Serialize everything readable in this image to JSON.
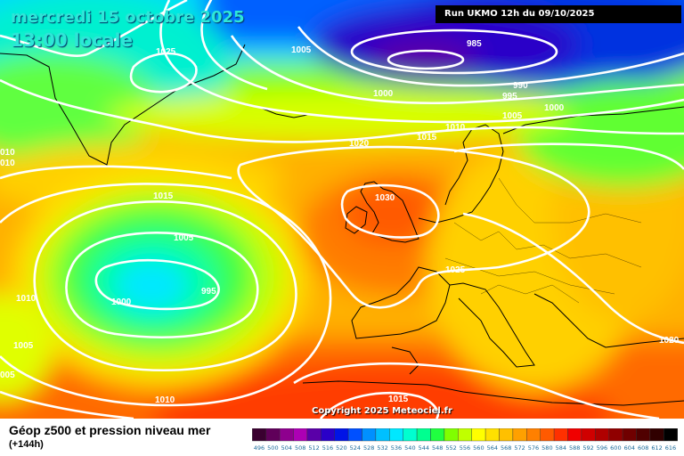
{
  "header": {
    "date": "mercredi 15 octobre 2025",
    "local_time": "13:00 locale",
    "run": "Run UKMO 12h du 09/10/2025"
  },
  "copyright": "Copyright 2025 Meteociel.fr",
  "footer": {
    "title": "Géop z500 et pression niveau mer",
    "subtitle": "(+144h)"
  },
  "legend": {
    "values": [
      "496",
      "500",
      "504",
      "508",
      "512",
      "516",
      "520",
      "524",
      "528",
      "532",
      "536",
      "540",
      "544",
      "548",
      "552",
      "556",
      "560",
      "564",
      "568",
      "572",
      "576",
      "580",
      "584",
      "588",
      "592",
      "596",
      "600",
      "604",
      "608",
      "612",
      "616"
    ],
    "colors": [
      "#3a0030",
      "#60005a",
      "#8e008e",
      "#ad00b4",
      "#5a00a8",
      "#2a00c8",
      "#0014e6",
      "#0050ff",
      "#0090ff",
      "#00c0ff",
      "#00e8ff",
      "#00ffd0",
      "#00ff90",
      "#20ff40",
      "#80ff00",
      "#c0ff00",
      "#ffff00",
      "#ffe000",
      "#ffc000",
      "#ffa000",
      "#ff8000",
      "#ff5a00",
      "#ff3000",
      "#f00000",
      "#d00000",
      "#b00000",
      "#900000",
      "#700000",
      "#500000",
      "#300000",
      "#000000"
    ]
  },
  "isobar_labels": [
    {
      "name": "isobar-1025-greenland",
      "text": "1025"
    },
    {
      "name": "isobar-1005-north",
      "text": "1005"
    },
    {
      "name": "isobar-985-low",
      "text": "985"
    },
    {
      "name": "isobar-990",
      "text": "990"
    },
    {
      "name": "isobar-995-north",
      "text": "995"
    },
    {
      "name": "isobar-1000-north",
      "text": "1000"
    },
    {
      "name": "isobar-1000-norway",
      "text": "1000"
    },
    {
      "name": "isobar-1005-norway",
      "text": "1005"
    },
    {
      "name": "isobar-1010-north",
      "text": "1010"
    },
    {
      "name": "isobar-1015-north",
      "text": "1015"
    },
    {
      "name": "isobar-1020-north",
      "text": "1020"
    },
    {
      "name": "isobar-1010-west-a",
      "text": "010"
    },
    {
      "name": "isobar-1010-west-b",
      "text": "010"
    },
    {
      "name": "isobar-1015-atlantic",
      "text": "1015"
    },
    {
      "name": "isobar-1005-atlantic",
      "text": "1005"
    },
    {
      "name": "isobar-1000-low",
      "text": "1000"
    },
    {
      "name": "isobar-995-low",
      "text": "995"
    },
    {
      "name": "isobar-1010-west",
      "text": "1010"
    },
    {
      "name": "isobar-1005-west",
      "text": "1005"
    },
    {
      "name": "isobar-1005-edge",
      "text": "005"
    },
    {
      "name": "isobar-1030-high",
      "text": "1030"
    },
    {
      "name": "isobar-1025-europe",
      "text": "1025"
    },
    {
      "name": "isobar-1020-east",
      "text": "1020"
    },
    {
      "name": "isobar-1010-south",
      "text": "1010"
    },
    {
      "name": "isobar-1015-south",
      "text": "1015"
    }
  ]
}
